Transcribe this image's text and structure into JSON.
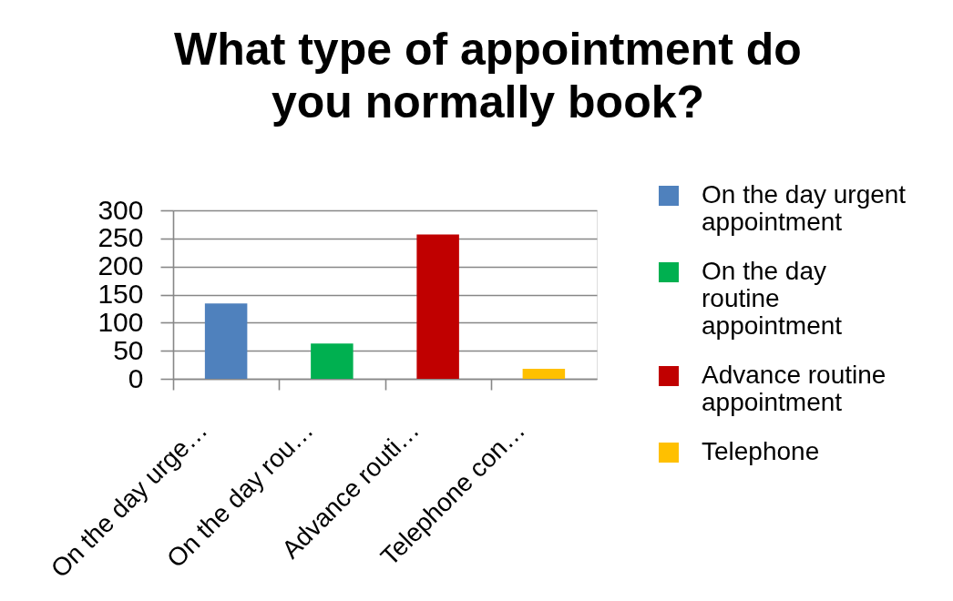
{
  "chart_data": {
    "type": "bar",
    "title": "What type of appointment do you normally book?",
    "categories": [
      "On the day urge…",
      "On the day rou…",
      "Advance routi…",
      "Telephone con…"
    ],
    "series": [
      {
        "name": "On the day urgent appointment",
        "color": "#4f81bd",
        "values": [
          134,
          null,
          null,
          null
        ]
      },
      {
        "name": "On the day routine appointment",
        "color": "#00b050",
        "values": [
          null,
          63,
          null,
          null
        ]
      },
      {
        "name": "Advance routine appointment",
        "color": "#c00000",
        "values": [
          null,
          null,
          257,
          null
        ]
      },
      {
        "name": "Telephone",
        "color": "#ffc000",
        "values": [
          null,
          null,
          null,
          18
        ]
      }
    ],
    "ylim": [
      0,
      300
    ],
    "yticks": [
      0,
      50,
      100,
      150,
      200,
      250,
      300
    ],
    "grid": "y",
    "legend": "right"
  }
}
